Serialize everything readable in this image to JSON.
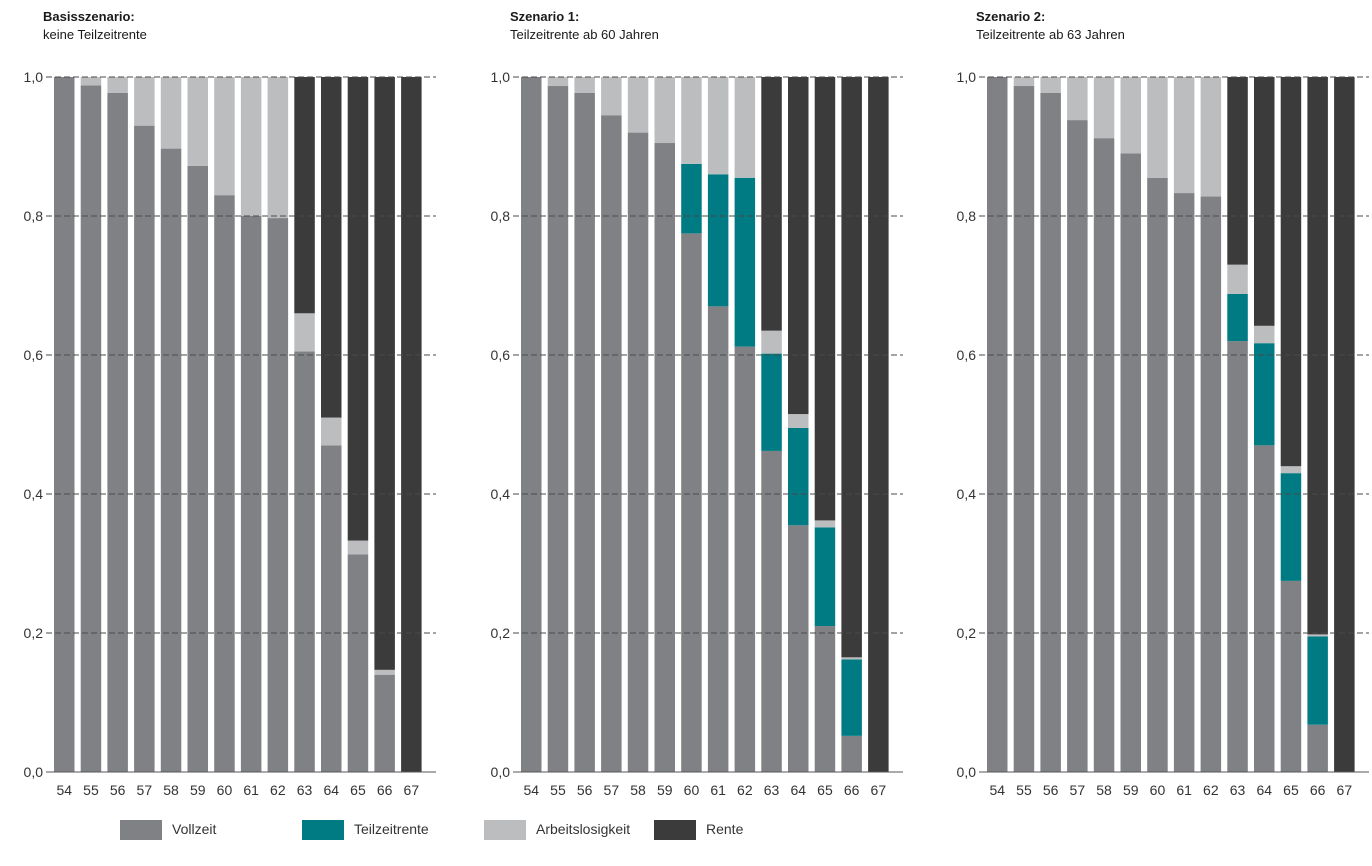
{
  "colors": {
    "Vollzeit": "#808184",
    "Teilzeitrente": "#007b84",
    "Arbeitslosigkeit": "#bcbdbf",
    "Rente": "#3b3b3c"
  },
  "legend": [
    "Vollzeit",
    "Teilzeitrente",
    "Arbeitslosigkeit",
    "Rente"
  ],
  "chart_data": [
    {
      "type": "bar",
      "stacked": true,
      "title": "Basisszenario:",
      "subtitle": "keine Teilzeitrente",
      "categories": [
        "54",
        "55",
        "56",
        "57",
        "58",
        "59",
        "60",
        "61",
        "62",
        "63",
        "64",
        "65",
        "66",
        "67"
      ],
      "yticks": [
        "0,0",
        "0,2",
        "0,4",
        "0,6",
        "0,8",
        "1,0"
      ],
      "ylim": [
        0,
        1
      ],
      "series": [
        {
          "name": "Vollzeit",
          "values": [
            1.0,
            0.988,
            0.977,
            0.93,
            0.897,
            0.872,
            0.83,
            0.8,
            0.797,
            0.605,
            0.47,
            0.313,
            0.14,
            0.0
          ]
        },
        {
          "name": "Teilzeitrente",
          "values": [
            0,
            0,
            0,
            0,
            0,
            0,
            0,
            0,
            0,
            0,
            0,
            0,
            0,
            0
          ]
        },
        {
          "name": "Arbeitslosigkeit",
          "values": [
            0.0,
            0.012,
            0.023,
            0.07,
            0.103,
            0.128,
            0.17,
            0.2,
            0.203,
            0.055,
            0.04,
            0.02,
            0.007,
            0.0
          ]
        },
        {
          "name": "Rente",
          "values": [
            0,
            0,
            0,
            0,
            0,
            0,
            0,
            0,
            0,
            0.34,
            0.49,
            0.667,
            0.853,
            1.0
          ]
        }
      ]
    },
    {
      "type": "bar",
      "stacked": true,
      "title": "Szenario 1:",
      "subtitle": "Teilzeitrente ab 60 Jahren",
      "categories": [
        "54",
        "55",
        "56",
        "57",
        "58",
        "59",
        "60",
        "61",
        "62",
        "63",
        "64",
        "65",
        "66",
        "67"
      ],
      "yticks": [
        "0,0",
        "0,2",
        "0,4",
        "0,6",
        "0,8",
        "1,0"
      ],
      "ylim": [
        0,
        1
      ],
      "series": [
        {
          "name": "Vollzeit",
          "values": [
            1.0,
            0.987,
            0.977,
            0.945,
            0.92,
            0.905,
            0.775,
            0.67,
            0.612,
            0.462,
            0.355,
            0.21,
            0.052,
            0.0
          ]
        },
        {
          "name": "Teilzeitrente",
          "values": [
            0,
            0,
            0,
            0,
            0,
            0,
            0.1,
            0.19,
            0.243,
            0.14,
            0.14,
            0.142,
            0.11,
            0.0
          ]
        },
        {
          "name": "Arbeitslosigkeit",
          "values": [
            0.0,
            0.013,
            0.023,
            0.055,
            0.08,
            0.095,
            0.125,
            0.14,
            0.145,
            0.033,
            0.02,
            0.01,
            0.003,
            0.0
          ]
        },
        {
          "name": "Rente",
          "values": [
            0,
            0,
            0,
            0,
            0,
            0,
            0,
            0,
            0,
            0.365,
            0.485,
            0.638,
            0.835,
            1.0
          ]
        }
      ]
    },
    {
      "type": "bar",
      "stacked": true,
      "title": "Szenario 2:",
      "subtitle": "Teilzeitrente ab 63 Jahren",
      "categories": [
        "54",
        "55",
        "56",
        "57",
        "58",
        "59",
        "60",
        "61",
        "62",
        "63",
        "64",
        "65",
        "66",
        "67"
      ],
      "yticks": [
        "0,0",
        "0,2",
        "0,4",
        "0,6",
        "0,8",
        "1,0"
      ],
      "ylim": [
        0,
        1
      ],
      "series": [
        {
          "name": "Vollzeit",
          "values": [
            1.0,
            0.987,
            0.977,
            0.938,
            0.912,
            0.89,
            0.855,
            0.833,
            0.828,
            0.62,
            0.47,
            0.275,
            0.068,
            0.0
          ]
        },
        {
          "name": "Teilzeitrente",
          "values": [
            0,
            0,
            0,
            0,
            0,
            0,
            0,
            0,
            0,
            0.068,
            0.147,
            0.155,
            0.127,
            0.0
          ]
        },
        {
          "name": "Arbeitslosigkeit",
          "values": [
            0.0,
            0.013,
            0.023,
            0.062,
            0.088,
            0.11,
            0.145,
            0.167,
            0.172,
            0.042,
            0.025,
            0.01,
            0.003,
            0.0
          ]
        },
        {
          "name": "Rente",
          "values": [
            0,
            0,
            0,
            0,
            0,
            0,
            0,
            0,
            0,
            0.27,
            0.358,
            0.56,
            0.802,
            1.0
          ]
        }
      ]
    }
  ]
}
